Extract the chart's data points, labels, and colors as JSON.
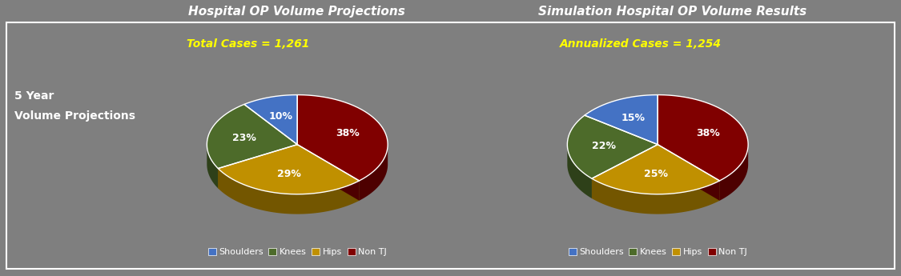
{
  "background_color": "#7F7F7F",
  "border_color": "#ffffff",
  "left_title": "Hospital OP Volume Projections",
  "right_title": "Simulation Hospital OP Volume Results",
  "left_subtitle": "Total Cases = 1,261",
  "right_subtitle": "Annualized Cases = 1,254",
  "side_label_line1": "5 Year",
  "side_label_line2": "Volume Projections",
  "left_pie": {
    "values": [
      10,
      23,
      29,
      38
    ],
    "labels": [
      "10%",
      "23%",
      "29%",
      "38%"
    ],
    "colors": [
      "#4472C4",
      "#4D6B2A",
      "#C09000",
      "#800000"
    ],
    "startangle": 90
  },
  "right_pie": {
    "values": [
      15,
      22,
      25,
      38
    ],
    "labels": [
      "15%",
      "22%",
      "25%",
      "38%"
    ],
    "colors": [
      "#4472C4",
      "#4D6B2A",
      "#C09000",
      "#800000"
    ],
    "startangle": 90
  },
  "legend_labels": [
    "Shoulders",
    "Knees",
    "Hips",
    "Non TJ"
  ],
  "legend_colors": [
    "#4472C4",
    "#4D6B2A",
    "#C09000",
    "#800000"
  ],
  "subtitle_color": "#FFFF00",
  "title_color": "#FFFFFF",
  "label_color": "#FFFFFF",
  "legend_color": "#FFFFFF",
  "pie_depth": 0.25,
  "pie_yscale": 0.55
}
